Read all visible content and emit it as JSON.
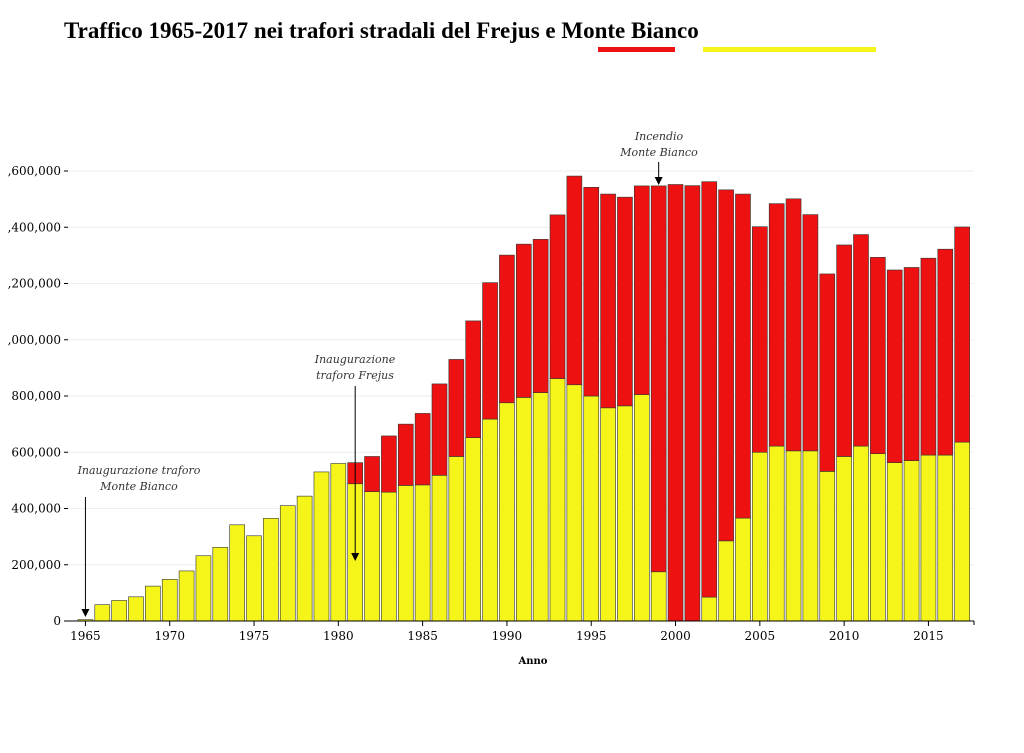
{
  "title": "Traffico 1965-2017 nei trafori stradali del Frejus e Monte Bianco",
  "colors": {
    "frejus": "#ee1111",
    "monte_bianco": "#f5f51a",
    "bar_stroke": "#333333",
    "grid": "#eeeeee"
  },
  "chart_data": {
    "type": "bar",
    "stacked": true,
    "title": "Traffico 1965-2017 nei trafori stradali del Frejus e Monte Bianco",
    "xlabel": "Anno",
    "ylabel": "",
    "ylim": [
      0,
      1600000
    ],
    "yticks": [
      0,
      200000,
      400000,
      600000,
      800000,
      1000000,
      1200000,
      1400000,
      1600000
    ],
    "ytick_labels": [
      "0",
      "200,000",
      "400,000",
      "600,000",
      "800,000",
      ",000,000",
      ",200,000",
      ",400,000",
      ",600,000"
    ],
    "xticks": [
      1965,
      1970,
      1975,
      1980,
      1985,
      1990,
      1995,
      2000,
      2005,
      2010,
      2015
    ],
    "categories": [
      1965,
      1966,
      1967,
      1968,
      1969,
      1970,
      1971,
      1972,
      1973,
      1974,
      1975,
      1976,
      1977,
      1978,
      1979,
      1980,
      1981,
      1982,
      1983,
      1984,
      1985,
      1986,
      1987,
      1988,
      1989,
      1990,
      1991,
      1992,
      1993,
      1994,
      1995,
      1996,
      1997,
      1998,
      1999,
      2000,
      2001,
      2002,
      2003,
      2004,
      2005,
      2006,
      2007,
      2008,
      2009,
      2010,
      2011,
      2012,
      2013,
      2014,
      2015,
      2016,
      2017
    ],
    "series": [
      {
        "color_key": "monte_bianco",
        "values": [
          5000,
          58000,
          73000,
          86000,
          124000,
          148000,
          178000,
          232000,
          262000,
          342000,
          303000,
          365000,
          410000,
          444000,
          530000,
          560000,
          488000,
          460000,
          458000,
          482000,
          484000,
          518000,
          585000,
          652000,
          718000,
          776000,
          795000,
          812000,
          862000,
          840000,
          800000,
          758000,
          765000,
          805000,
          175000,
          0,
          0,
          85000,
          285000,
          366000,
          600000,
          622000,
          605000,
          605000,
          532000,
          585000,
          622000,
          595000,
          563000,
          570000,
          590000,
          590000,
          636000
        ]
      },
      {
        "color_key": "frejus",
        "values": [
          0,
          0,
          0,
          0,
          0,
          0,
          0,
          0,
          0,
          0,
          0,
          0,
          0,
          0,
          0,
          0,
          75000,
          125000,
          200000,
          218000,
          254000,
          325000,
          345000,
          415000,
          485000,
          525000,
          545000,
          545000,
          582000,
          742000,
          742000,
          760000,
          742000,
          742000,
          1372000,
          1552000,
          1548000,
          1477000,
          1248000,
          1152000,
          802000,
          862000,
          896000,
          840000,
          702000,
          752000,
          752000,
          698000,
          685000,
          687000,
          700000,
          732000,
          765000
        ]
      }
    ],
    "annotations": [
      {
        "text_lines": [
          "Inaugurazione traforo",
          "Monte Bianco"
        ],
        "year": 1965
      },
      {
        "text_lines": [
          "Inaugurazione",
          "traforo Frejus"
        ],
        "year": 1981
      },
      {
        "text_lines": [
          "Incendio",
          "Monte Bianco"
        ],
        "year": 1999
      }
    ]
  }
}
